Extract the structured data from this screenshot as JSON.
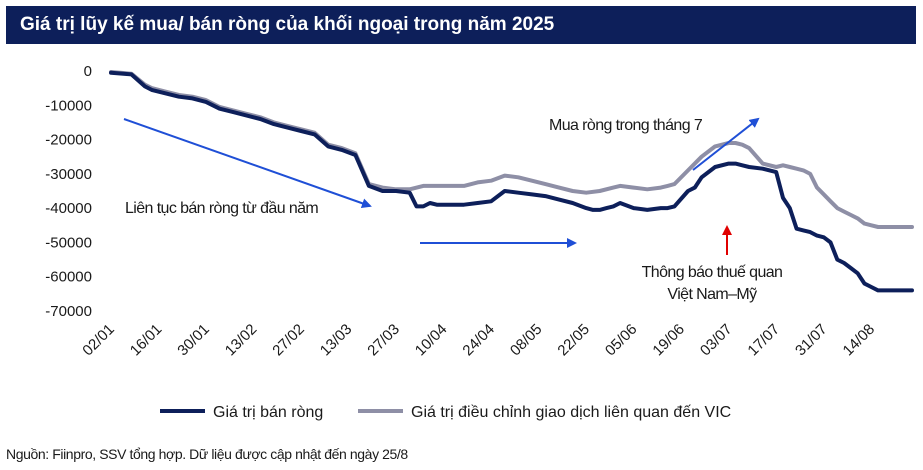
{
  "title": "Giá trị lũy kế mua/ bán ròng của khối ngoại trong năm 2025",
  "source": "Nguồn: Fiinpro, SSV tổng hợp. Dữ liệu được cập nhật đến ngày 25/8",
  "colors": {
    "title_bg": "#0d1f5a",
    "net": "#0d1f5a",
    "adjusted": "#8e8fa6",
    "arrow": "#1f4fd6",
    "marker": "#e00000"
  },
  "chart_data": {
    "type": "line",
    "title": "Giá trị lũy kế mua/ bán ròng của khối ngoại trong năm 2025",
    "xlabel": "",
    "ylabel": "",
    "ylim": [
      -70000,
      0
    ],
    "yticks": [
      0,
      -10000,
      -20000,
      -30000,
      -40000,
      -50000,
      -60000,
      -70000
    ],
    "ytick_labels": [
      "0",
      "-10000",
      "-20000",
      "-30000",
      "-40000",
      "-50000",
      "-60000",
      "-70000"
    ],
    "x_tick_labels": [
      "02/01",
      "16/01",
      "30/01",
      "13/02",
      "27/02",
      "13/03",
      "27/03",
      "10/04",
      "24/04",
      "08/05",
      "22/05",
      "05/06",
      "19/06",
      "03/07",
      "17/07",
      "31/07",
      "14/08"
    ],
    "x_range_days": [
      0,
      236
    ],
    "legend_position": "bottom",
    "grid": false,
    "series": [
      {
        "name": "Giá trị bán ròng",
        "color": "#0d1f5a",
        "x": [
          0,
          6,
          10,
          12,
          16,
          20,
          24,
          28,
          32,
          36,
          40,
          44,
          48,
          52,
          56,
          60,
          64,
          68,
          72,
          76,
          80,
          84,
          88,
          90,
          92,
          94,
          96,
          98,
          100,
          102,
          104,
          108,
          112,
          116,
          120,
          124,
          128,
          132,
          136,
          140,
          142,
          144,
          146,
          148,
          150,
          154,
          158,
          162,
          164,
          166,
          170,
          172,
          174,
          178,
          182,
          184,
          186,
          188,
          192,
          196,
          198,
          200,
          202,
          204,
          206,
          208,
          210,
          212,
          214,
          216,
          218,
          220,
          222,
          224,
          226,
          228,
          230,
          232,
          234,
          236
        ],
        "values": [
          -500,
          -1000,
          -4500,
          -5500,
          -6500,
          -7500,
          -8000,
          -9000,
          -11000,
          -12000,
          -13000,
          -14000,
          -15500,
          -16500,
          -17500,
          -18500,
          -22000,
          -23000,
          -24500,
          -33500,
          -35000,
          -35000,
          -35500,
          -39500,
          -39500,
          -38500,
          -39000,
          -39000,
          -39000,
          -39000,
          -39000,
          -38500,
          -38000,
          -35000,
          -35500,
          -36000,
          -36500,
          -37500,
          -38500,
          -40000,
          -40500,
          -40500,
          -40000,
          -39500,
          -38500,
          -40000,
          -40500,
          -40000,
          -40000,
          -39500,
          -35000,
          -34000,
          -31000,
          -28000,
          -27000,
          -27000,
          -27500,
          -28000,
          -28500,
          -29500,
          -37000,
          -40000,
          -46000,
          -46500,
          -47000,
          -48000,
          -48500,
          -50000,
          -55000,
          -56000,
          -57500,
          -59000,
          -62000,
          -63000,
          -64000,
          -64000,
          -64000,
          -64000,
          -64000,
          -64000
        ]
      },
      {
        "name": "Giá trị điều chỉnh giao dịch liên quan đến VIC",
        "color": "#8e8fa6",
        "x": [
          0,
          6,
          10,
          12,
          16,
          20,
          24,
          28,
          32,
          36,
          40,
          44,
          48,
          52,
          56,
          60,
          64,
          68,
          72,
          76,
          80,
          84,
          88,
          92,
          96,
          100,
          104,
          108,
          112,
          116,
          120,
          124,
          128,
          132,
          136,
          140,
          144,
          148,
          150,
          154,
          158,
          162,
          164,
          166,
          170,
          172,
          174,
          178,
          182,
          184,
          186,
          188,
          192,
          196,
          198,
          200,
          202,
          204,
          206,
          208,
          210,
          212,
          214,
          216,
          218,
          220,
          222,
          224,
          226,
          228,
          230,
          232,
          234,
          236
        ],
        "values": [
          -300,
          -800,
          -4000,
          -5000,
          -6000,
          -7000,
          -7500,
          -8500,
          -10500,
          -11500,
          -12500,
          -13500,
          -15000,
          -16000,
          -17000,
          -18000,
          -21500,
          -22500,
          -24000,
          -33000,
          -34000,
          -34500,
          -34500,
          -33500,
          -33500,
          -33500,
          -33500,
          -32500,
          -32000,
          -30500,
          -31000,
          -32000,
          -33000,
          -34000,
          -35000,
          -35500,
          -35000,
          -34000,
          -33500,
          -34000,
          -34500,
          -34000,
          -33500,
          -33000,
          -29000,
          -27000,
          -25000,
          -22000,
          -21000,
          -21000,
          -21500,
          -22500,
          -27000,
          -28000,
          -27500,
          -28000,
          -28500,
          -29000,
          -30000,
          -34000,
          -36000,
          -38000,
          -40000,
          -41000,
          -42000,
          -43000,
          -44500,
          -45000,
          -45500,
          -45500,
          -45500,
          -45500,
          -45500,
          -45500
        ]
      }
    ],
    "annotations": [
      {
        "text": "Liên tục bán ròng từ đầu năm",
        "kind": "label"
      },
      {
        "text": "Mua ròng trong tháng 7",
        "kind": "label"
      },
      {
        "text": "Thông báo thuế quan",
        "kind": "label"
      },
      {
        "text": "Việt Nam–Mỹ",
        "kind": "label"
      }
    ]
  }
}
